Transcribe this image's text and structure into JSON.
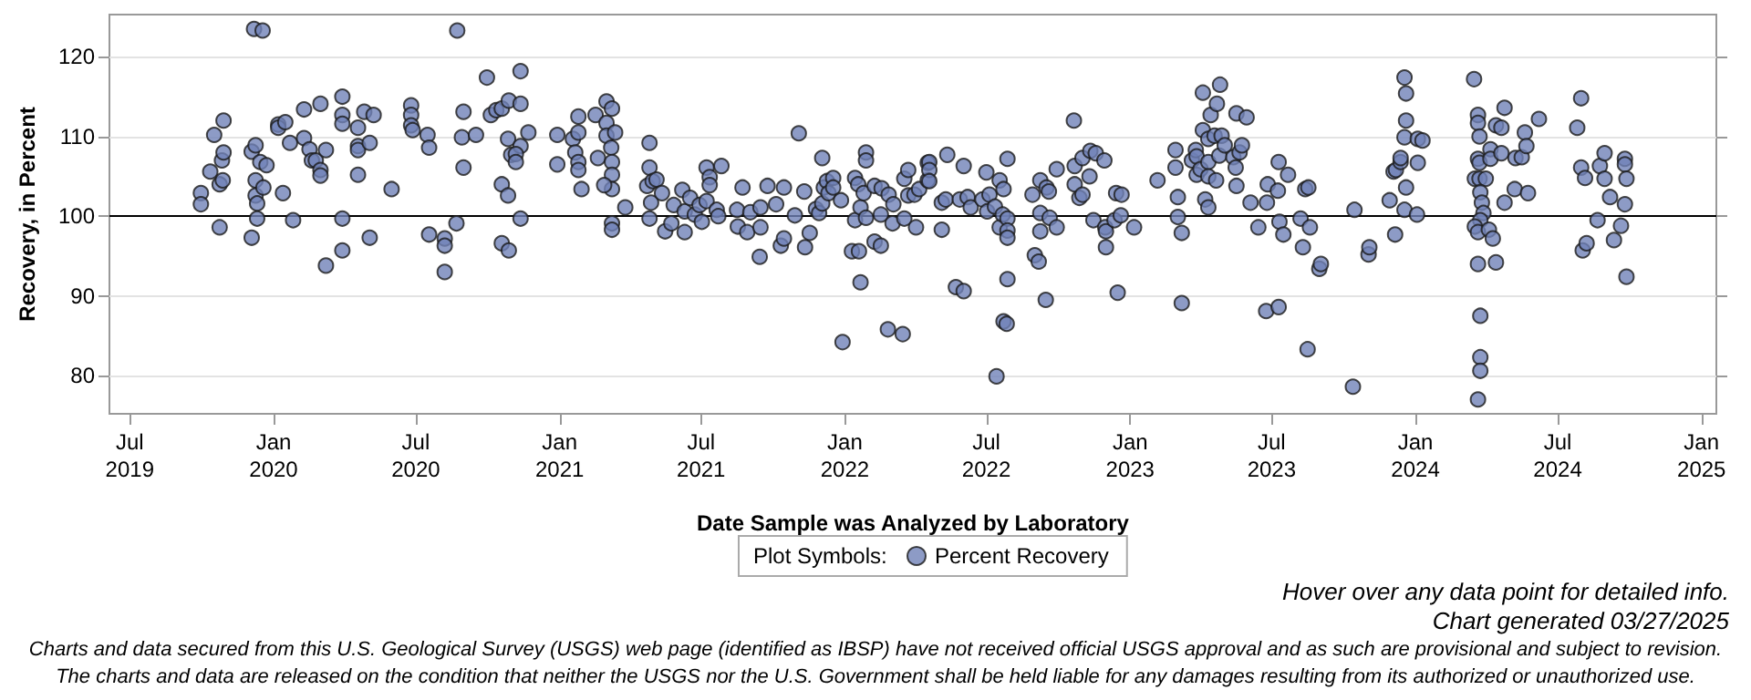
{
  "chart_data": {
    "type": "scatter",
    "xlabel": "Date Sample was Analyzed by Laboratory",
    "ylabel": "Recovery, in Percent",
    "legend_title": "Plot Symbols:",
    "marker": "circle",
    "grid": "y",
    "legend": "bottom",
    "xlim": [
      "2019-06-05",
      "2025-01-20"
    ],
    "xticks": [
      {
        "value": "2019-07-01",
        "label": "Jul\n2019"
      },
      {
        "value": "2020-01-01",
        "label": "Jan\n2020"
      },
      {
        "value": "2020-07-01",
        "label": "Jul\n2020"
      },
      {
        "value": "2021-01-01",
        "label": "Jan\n2021"
      },
      {
        "value": "2021-07-01",
        "label": "Jul\n2021"
      },
      {
        "value": "2022-01-01",
        "label": "Jan\n2022"
      },
      {
        "value": "2022-07-01",
        "label": "Jul\n2022"
      },
      {
        "value": "2023-01-01",
        "label": "Jan\n2023"
      },
      {
        "value": "2023-07-01",
        "label": "Jul\n2023"
      },
      {
        "value": "2024-01-01",
        "label": "Jan\n2024"
      },
      {
        "value": "2024-07-01",
        "label": "Jul\n2024"
      },
      {
        "value": "2025-01-01",
        "label": "Jan\n2025"
      }
    ],
    "ylim": [
      75.2,
      125.3
    ],
    "yticks": [
      80,
      90,
      100,
      110,
      120
    ],
    "ref_lines": [
      {
        "axis": "y",
        "value": 100,
        "color": "#000000"
      }
    ],
    "annotations": [
      "Hover over any data point for detailed info.",
      "Chart generated 03/27/2025",
      "Charts and data secured from this U.S. Geological Survey (USGS) web page (identified as IBSP) have not received official USGS approval and as such are provisional and subject to revision.",
      "The charts and data are released on the condition that neither the USGS nor the U.S. Government shall be held liable for any damages resulting from its authorized or unauthorized use."
    ],
    "series": [
      {
        "name": "Percent Recovery",
        "color": "#7082b8",
        "x": [
          "2019-09-30",
          "2019-09-30",
          "2019-10-12",
          "2019-10-17",
          "2019-10-24",
          "2019-10-24",
          "2019-10-27",
          "2019-10-28",
          "2019-10-29",
          "2019-10-29",
          "2019-12-04",
          "2019-12-04",
          "2019-12-09",
          "2019-12-09",
          "2019-12-09",
          "2019-12-11",
          "2019-12-11",
          "2019-12-07",
          "2019-12-18",
          "2019-12-15",
          "2019-12-19",
          "2019-12-23",
          "2020-01-07",
          "2020-01-07",
          "2020-01-16",
          "2020-01-13",
          "2020-01-22",
          "2020-01-26",
          "2020-02-09",
          "2020-02-09",
          "2020-02-16",
          "2020-02-19",
          "2020-02-24",
          "2020-03-01",
          "2020-03-01",
          "2020-03-01",
          "2020-03-08",
          "2020-03-08",
          "2020-03-29",
          "2020-03-29",
          "2020-03-29",
          "2020-03-29",
          "2020-03-29",
          "2020-04-18",
          "2020-04-18",
          "2020-04-18",
          "2020-04-18",
          "2020-04-26",
          "2020-05-03",
          "2020-05-03",
          "2020-05-08",
          "2020-05-31",
          "2020-06-25",
          "2020-06-25",
          "2020-06-25",
          "2020-06-27",
          "2020-07-16",
          "2020-07-18",
          "2020-07-18",
          "2020-08-07",
          "2020-08-07",
          "2020-08-07",
          "2020-08-22",
          "2020-08-23",
          "2020-08-29",
          "2020-08-31",
          "2020-08-31",
          "2020-09-16",
          "2020-09-30",
          "2020-10-05",
          "2020-10-12",
          "2020-10-19",
          "2020-10-19",
          "2020-10-19",
          "2020-10-27",
          "2020-10-27",
          "2020-10-28",
          "2020-10-28",
          "2020-10-31",
          "2020-11-12",
          "2020-11-12",
          "2020-11-22",
          "2020-11-12",
          "2020-11-06",
          "2020-11-06",
          "2020-11-12",
          "2020-12-29",
          "2020-12-29",
          "2021-01-18",
          "2021-01-21",
          "2021-01-25",
          "2021-01-25",
          "2021-01-25",
          "2021-01-25",
          "2021-01-29",
          "2021-02-16",
          "2021-02-19",
          "2021-03-02",
          "2021-03-02",
          "2021-03-02",
          "2021-03-09",
          "2021-03-08",
          "2021-03-09",
          "2021-03-09",
          "2021-03-09",
          "2021-02-27",
          "2021-03-09",
          "2021-03-09",
          "2021-03-13",
          "2021-03-26",
          "2021-04-26",
          "2021-04-26",
          "2021-04-23",
          "2021-04-26",
          "2021-04-30",
          "2021-05-05",
          "2021-04-28",
          "2021-05-12",
          "2021-05-16",
          "2021-05-24",
          "2021-05-27",
          "2021-06-07",
          "2021-06-10",
          "2021-06-10",
          "2021-06-17",
          "2021-06-23",
          "2021-06-29",
          "2021-07-02",
          "2021-07-08",
          "2021-07-08",
          "2021-07-12",
          "2021-07-12",
          "2021-07-21",
          "2021-07-23",
          "2021-07-27",
          "2021-08-16",
          "2021-08-17",
          "2021-08-23",
          "2021-08-29",
          "2021-09-02",
          "2021-09-15",
          "2021-09-15",
          "2021-09-14",
          "2021-09-24",
          "2021-10-05",
          "2021-10-11",
          "2021-10-15",
          "2021-10-15",
          "2021-10-29",
          "2021-11-03",
          "2021-11-10",
          "2021-11-11",
          "2021-11-17",
          "2021-11-25",
          "2021-11-29",
          "2021-12-03",
          "2021-12-03",
          "2021-12-05",
          "2021-12-09",
          "2021-12-11",
          "2021-12-17",
          "2021-12-17",
          "2021-12-27",
          "2021-12-29",
          "2022-01-10",
          "2022-01-19",
          "2022-01-14",
          "2022-01-14",
          "2022-01-18",
          "2022-01-21",
          "2022-01-21",
          "2022-01-25",
          "2022-01-28",
          "2022-01-28",
          "2022-01-28",
          "2022-02-08",
          "2022-02-08",
          "2022-02-16",
          "2022-02-16",
          "2022-02-17",
          "2022-02-25",
          "2022-02-26",
          "2022-03-04",
          "2022-03-03",
          "2022-03-16",
          "2022-03-18",
          "2022-03-18",
          "2022-03-23",
          "2022-03-23",
          "2022-03-31",
          "2022-04-02",
          "2022-04-06",
          "2022-04-17",
          "2022-04-17",
          "2022-04-19",
          "2022-04-19",
          "2022-04-19",
          "2022-05-05",
          "2022-05-05",
          "2022-05-12",
          "2022-05-10",
          "2022-05-23",
          "2022-06-02",
          "2022-05-28",
          "2022-06-02",
          "2022-06-07",
          "2022-06-11",
          "2022-06-26",
          "2022-07-01",
          "2022-07-02",
          "2022-07-05",
          "2022-07-12",
          "2022-07-14",
          "2022-07-18",
          "2022-07-18",
          "2022-07-23",
          "2022-07-23",
          "2022-07-27",
          "2022-07-22",
          "2022-07-28",
          "2022-07-28",
          "2022-07-28",
          "2022-07-28",
          "2022-07-28",
          "2022-08-29",
          "2022-09-01",
          "2022-09-06",
          "2022-09-08",
          "2022-09-08",
          "2022-09-08",
          "2022-09-15",
          "2022-09-16",
          "2022-09-19",
          "2022-09-20",
          "2022-09-29",
          "2022-09-29",
          "2022-10-21",
          "2022-10-22",
          "2022-10-22",
          "2022-10-28",
          "2022-11-01",
          "2022-11-01",
          "2022-11-10",
          "2022-11-11",
          "2022-11-18",
          "2022-11-15",
          "2022-11-29",
          "2022-11-30",
          "2022-12-01",
          "2022-12-01",
          "2022-12-12",
          "2022-12-14",
          "2022-12-21",
          "2022-12-16",
          "2022-12-20",
          "2023-01-06",
          "2023-02-05",
          "2023-02-28",
          "2023-02-28",
          "2023-03-03",
          "2023-03-03",
          "2023-03-08",
          "2023-03-08",
          "2023-03-21",
          "2023-03-26",
          "2023-03-27",
          "2023-03-27",
          "2023-04-01",
          "2023-04-04",
          "2023-04-04",
          "2023-04-07",
          "2023-04-11",
          "2023-04-11",
          "2023-04-11",
          "2023-04-11",
          "2023-04-14",
          "2023-04-19",
          "2023-04-21",
          "2023-04-22",
          "2023-04-25",
          "2023-04-26",
          "2023-04-28",
          "2023-05-02",
          "2023-05-13",
          "2023-05-17",
          "2023-05-16",
          "2023-05-17",
          "2023-05-21",
          "2023-05-24",
          "2023-05-30",
          "2023-06-04",
          "2023-06-14",
          "2023-06-24",
          "2023-06-25",
          "2023-06-26",
          "2023-07-10",
          "2023-07-10",
          "2023-07-09",
          "2023-07-11",
          "2023-07-16",
          "2023-07-22",
          "2023-08-07",
          "2023-08-10",
          "2023-08-13",
          "2023-08-17",
          "2023-08-16",
          "2023-08-19",
          "2023-08-31",
          "2023-09-02",
          "2023-10-13",
          "2023-10-15",
          "2023-11-02",
          "2023-11-03",
          "2023-11-29",
          "2023-12-06",
          "2023-12-04",
          "2023-12-07",
          "2023-12-13",
          "2023-12-13",
          "2023-12-18",
          "2023-12-20",
          "2023-12-20",
          "2023-12-18",
          "2023-12-20",
          "2023-12-18",
          "2024-01-03",
          "2024-01-04",
          "2024-01-04",
          "2024-01-10",
          "2024-03-16",
          "2024-03-21",
          "2024-03-21",
          "2024-03-23",
          "2024-03-21",
          "2024-03-23",
          "2024-03-17",
          "2024-03-23",
          "2024-03-31",
          "2024-03-24",
          "2024-03-26",
          "2024-03-28",
          "2024-03-24",
          "2024-03-17",
          "2024-03-21",
          "2024-04-04",
          "2024-04-09",
          "2024-03-21",
          "2024-04-13",
          "2024-03-24",
          "2024-03-24",
          "2024-03-24",
          "2024-03-21",
          "2024-04-06",
          "2024-04-06",
          "2024-04-13",
          "2024-04-20",
          "2024-04-20",
          "2024-04-24",
          "2024-04-24",
          "2024-05-08",
          "2024-05-07",
          "2024-05-16",
          "2024-05-20",
          "2024-05-22",
          "2024-05-24",
          "2024-06-07",
          "2024-07-26",
          "2024-07-31",
          "2024-07-31",
          "2024-08-05",
          "2024-08-02",
          "2024-08-07",
          "2024-08-21",
          "2024-08-24",
          "2024-08-30",
          "2024-08-30",
          "2024-09-06",
          "2024-09-11",
          "2024-09-20",
          "2024-09-25",
          "2024-09-25",
          "2024-09-27",
          "2024-09-25",
          "2024-09-27"
        ],
        "values": [
          102.9,
          101.5,
          105.6,
          110.2,
          104.0,
          98.6,
          107.0,
          104.5,
          108.0,
          112.0,
          108.1,
          97.3,
          108.9,
          104.5,
          102.6,
          101.6,
          99.7,
          123.5,
          123.3,
          106.8,
          103.6,
          106.4,
          111.5,
          111.1,
          111.8,
          102.9,
          109.2,
          99.5,
          113.4,
          109.8,
          108.4,
          107.0,
          107.0,
          105.8,
          105.1,
          114.1,
          108.3,
          93.8,
          115.0,
          112.7,
          111.6,
          99.7,
          95.7,
          111.1,
          108.8,
          108.3,
          105.2,
          113.1,
          109.2,
          97.3,
          112.7,
          103.4,
          113.9,
          112.7,
          111.4,
          110.8,
          110.2,
          108.6,
          97.7,
          97.2,
          96.3,
          93.0,
          99.1,
          123.3,
          109.9,
          113.1,
          106.1,
          110.2,
          117.4,
          112.7,
          113.3,
          113.5,
          104.0,
          96.6,
          109.7,
          102.6,
          95.7,
          114.5,
          107.7,
          118.2,
          114.1,
          110.5,
          108.8,
          107.8,
          106.8,
          99.7,
          110.2,
          106.5,
          109.7,
          108.0,
          112.5,
          110.5,
          106.8,
          105.8,
          103.4,
          112.7,
          107.3,
          114.4,
          111.7,
          110.1,
          113.5,
          108.6,
          106.8,
          105.2,
          103.4,
          103.9,
          99.1,
          98.3,
          110.5,
          101.1,
          109.2,
          106.1,
          103.8,
          99.7,
          104.4,
          104.6,
          101.7,
          102.9,
          98.1,
          99.1,
          101.4,
          103.3,
          98.0,
          100.6,
          102.3,
          100.2,
          101.4,
          99.3,
          106.1,
          101.9,
          104.9,
          103.9,
          100.8,
          100.0,
          106.3,
          100.8,
          98.7,
          103.6,
          98.0,
          100.5,
          101.1,
          98.6,
          94.9,
          103.8,
          101.5,
          96.3,
          97.2,
          103.6,
          100.1,
          110.4,
          103.1,
          96.1,
          97.9,
          100.9,
          100.4,
          107.3,
          101.6,
          103.6,
          104.4,
          102.9,
          104.8,
          103.6,
          102.0,
          84.2,
          95.6,
          95.6,
          99.5,
          104.8,
          104.0,
          91.7,
          101.1,
          102.9,
          108.0,
          107.0,
          99.8,
          103.8,
          96.8,
          96.3,
          100.2,
          103.5,
          85.8,
          102.7,
          101.5,
          99.1,
          85.2,
          104.7,
          99.7,
          105.8,
          102.6,
          102.7,
          98.6,
          103.4,
          106.7,
          104.5,
          106.8,
          105.8,
          104.4,
          98.3,
          101.7,
          107.7,
          102.1,
          91.1,
          90.6,
          102.1,
          106.3,
          102.4,
          101.1,
          102.1,
          105.5,
          100.6,
          102.7,
          101.2,
          79.9,
          104.5,
          98.6,
          103.4,
          86.8,
          86.5,
          100.2,
          99.7,
          98.2,
          97.3,
          92.1,
          107.2,
          102.7,
          95.1,
          94.3,
          104.5,
          98.1,
          100.4,
          89.5,
          103.6,
          103.1,
          99.8,
          98.6,
          105.9,
          112.0,
          106.3,
          104.0,
          102.3,
          107.3,
          102.7,
          105.0,
          108.2,
          107.9,
          99.5,
          107.0,
          98.6,
          98.1,
          96.1,
          99.5,
          102.9,
          102.7,
          90.4,
          100.1,
          98.6,
          104.5,
          108.3,
          106.1,
          102.4,
          99.9,
          97.9,
          89.1,
          107.0,
          108.3,
          107.5,
          105.2,
          105.9,
          115.5,
          110.8,
          102.1,
          101.1,
          109.7,
          106.8,
          105.0,
          112.7,
          110.1,
          104.5,
          114.1,
          107.6,
          116.5,
          110.1,
          108.9,
          107.4,
          112.9,
          106.1,
          103.8,
          108.0,
          108.9,
          112.4,
          101.7,
          98.6,
          88.1,
          101.7,
          104.0,
          88.6,
          106.8,
          103.2,
          99.3,
          97.7,
          105.2,
          99.7,
          96.1,
          103.4,
          103.6,
          83.3,
          98.6,
          93.4,
          94.0,
          78.6,
          100.8,
          95.2,
          96.1,
          102.0,
          97.7,
          105.6,
          105.8,
          106.8,
          107.3,
          117.4,
          115.4,
          112.0,
          109.9,
          103.6,
          100.8,
          100.2,
          106.7,
          109.7,
          109.5,
          117.2,
          112.7,
          111.7,
          110.0,
          107.2,
          106.7,
          104.7,
          104.7,
          104.7,
          103.0,
          101.7,
          100.4,
          99.5,
          98.7,
          98.0,
          98.3,
          97.2,
          94.0,
          94.2,
          87.5,
          82.3,
          80.6,
          77.0,
          108.4,
          107.2,
          111.4,
          111.1,
          107.9,
          113.6,
          101.7,
          107.3,
          103.4,
          107.4,
          110.5,
          108.8,
          102.9,
          112.2,
          111.1,
          114.8,
          106.1,
          104.8,
          95.7,
          96.6,
          99.5,
          106.3,
          107.9,
          104.7,
          102.4,
          97.0,
          98.8,
          107.2,
          106.5,
          104.7,
          101.5,
          92.4
        ]
      }
    ]
  }
}
